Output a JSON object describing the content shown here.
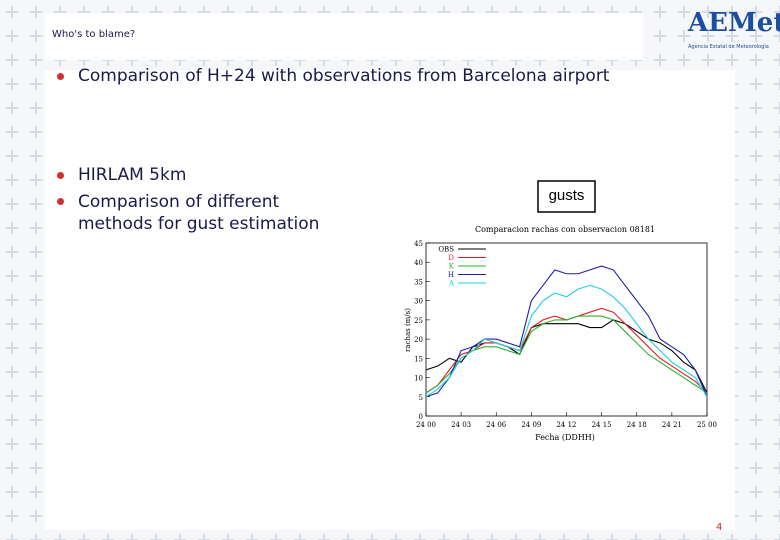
{
  "header": {
    "title": "Who's to blame?"
  },
  "logo": {
    "name": "AEMet",
    "subtitle": "Agencia Estatal de Meteorología"
  },
  "bullets": [
    "Comparison of H+24 with observations from Barcelona airport",
    "HIRLAM 5km",
    "Comparison of different methods for gust estimation"
  ],
  "callout": "gusts",
  "page_number": "4",
  "chart": {
    "type": "line",
    "title": "Comparacion rachas con observacion 08181",
    "x_label": "Fecha (DDHH)",
    "y_label": "rachas (m/s)",
    "x": [
      0,
      1,
      2,
      3,
      4,
      5,
      6,
      7,
      8,
      9,
      10,
      11,
      12,
      13,
      14,
      15,
      16,
      17,
      18,
      19,
      20,
      21,
      22,
      23,
      24
    ],
    "xlim": [
      0,
      24
    ],
    "xticks": [
      {
        "value": 0,
        "label": "24 00"
      },
      {
        "value": 3,
        "label": "24 03"
      },
      {
        "value": 6,
        "label": "24 06"
      },
      {
        "value": 9,
        "label": "24 09"
      },
      {
        "value": 12,
        "label": "24 12"
      },
      {
        "value": 15,
        "label": "24 15"
      },
      {
        "value": 18,
        "label": "24 18"
      },
      {
        "value": 21,
        "label": "24 21"
      },
      {
        "value": 24,
        "label": "25 00"
      }
    ],
    "ylim": [
      0,
      45
    ],
    "yticks": [
      0,
      5,
      10,
      15,
      20,
      25,
      30,
      35,
      40,
      45
    ],
    "series": [
      {
        "name": "OBS",
        "color": "#000000",
        "values": [
          12,
          13,
          15,
          14,
          18,
          19,
          19,
          18,
          16,
          23,
          24,
          24,
          24,
          24,
          23,
          23,
          25,
          24,
          22,
          20,
          19,
          17,
          14,
          12,
          6
        ]
      },
      {
        "name": "D",
        "color": "#e02020",
        "values": [
          6,
          8,
          12,
          16,
          17,
          19,
          19,
          18,
          17,
          23,
          25,
          26,
          25,
          26,
          27,
          28,
          27,
          24,
          21,
          18,
          15,
          13,
          11,
          9,
          6
        ]
      },
      {
        "name": "K",
        "color": "#30b030",
        "values": [
          6,
          8,
          11,
          15,
          17,
          18,
          18,
          17,
          16,
          22,
          24,
          25,
          25,
          26,
          26,
          26,
          25,
          22,
          19,
          16,
          14,
          12,
          10,
          8,
          6
        ]
      },
      {
        "name": "H",
        "color": "#2020b0",
        "values": [
          5,
          6,
          10,
          17,
          18,
          20,
          20,
          19,
          18,
          30,
          34,
          38,
          37,
          37,
          38,
          39,
          38,
          34,
          30,
          26,
          20,
          18,
          16,
          12,
          5
        ]
      },
      {
        "name": "A",
        "color": "#20d0e0",
        "values": [
          5,
          7,
          10,
          15,
          17,
          20,
          19,
          18,
          17,
          26,
          30,
          32,
          31,
          33,
          34,
          33,
          31,
          28,
          24,
          20,
          17,
          14,
          12,
          10,
          5
        ]
      }
    ]
  }
}
